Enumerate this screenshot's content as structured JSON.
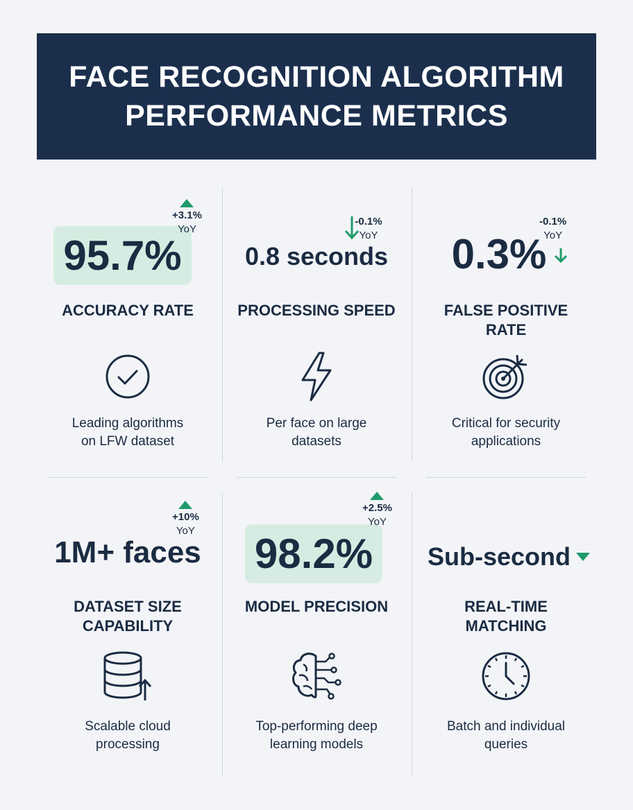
{
  "header": {
    "title_line1": "FACE RECOGNITION ALGORITHM",
    "title_line2": "PERFORMANCE METRICS"
  },
  "colors": {
    "navy": "#1b2f4d",
    "trend_green": "#1f9b6b",
    "highlight_mint": "#d6ece2",
    "divider": "#cfd4dc"
  },
  "metrics": [
    {
      "value": "95.7%",
      "trend_pct": "+3.1%",
      "trend_unit": "YoY",
      "trend_dir": "up",
      "label": "ACCURACY RATE",
      "icon": "check-circle-icon",
      "desc_line1": "Leading algorithms",
      "desc_line2": "on LFW dataset"
    },
    {
      "value": "0.8 seconds",
      "trend_pct": "-0.1%",
      "trend_unit": "YoY",
      "trend_dir": "down",
      "label": "PROCESSING SPEED",
      "icon": "lightning-bolt-icon",
      "desc_line1": "Per face on large",
      "desc_line2": "datasets"
    },
    {
      "value": "0.3%",
      "trend_pct": "-0.1%",
      "trend_unit": "YoY",
      "trend_dir": "down",
      "label_line1": "FALSE POSITIVE",
      "label_line2": "RATE",
      "icon": "target-icon",
      "desc_line1": "Critical for security",
      "desc_line2": "applications"
    },
    {
      "value": "1M+ faces",
      "trend_pct": "+10%",
      "trend_unit": "YoY",
      "trend_dir": "up",
      "label_line1": "DATASET SIZE",
      "label_line2": "CAPABILITY",
      "icon": "database-upload-icon",
      "desc_line1": "Scalable cloud",
      "desc_line2": "processing"
    },
    {
      "value": "98.2%",
      "trend_pct": "+2.5%",
      "trend_unit": "YoY",
      "trend_dir": "up",
      "label": "MODEL PRECISION",
      "icon": "brain-circuit-icon",
      "desc_line1": "Top-performing deep",
      "desc_line2": "learning models"
    },
    {
      "value": "Sub-second",
      "trend_dir": "down",
      "label_line1": "REAL-TIME",
      "label_line2": "MATCHING",
      "icon": "clock-icon",
      "desc_line1": "Batch and individual",
      "desc_line2": "queries"
    }
  ]
}
